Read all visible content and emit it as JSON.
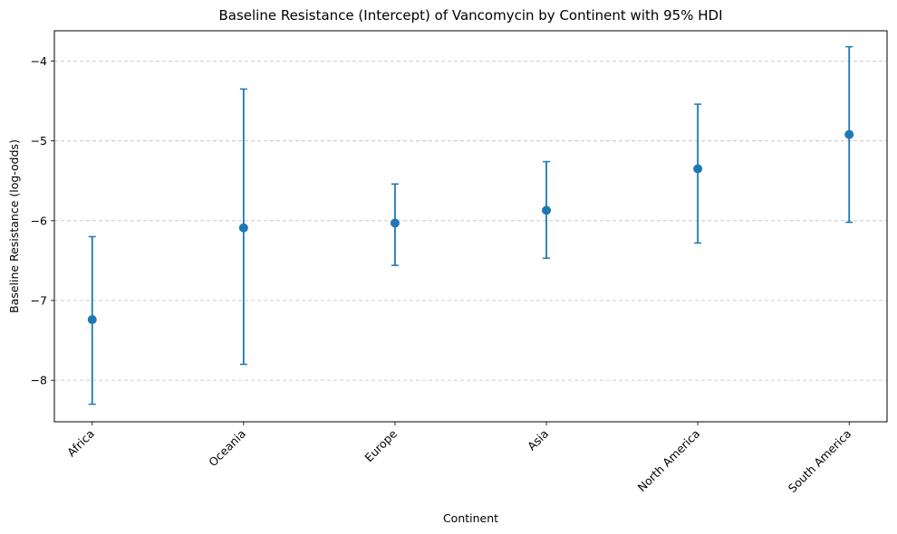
{
  "chart_data": {
    "type": "scatter",
    "title": "Baseline Resistance (Intercept) of Vancomycin by Continent with 95% HDI",
    "xlabel": "Continent",
    "ylabel": "Baseline Resistance (log-odds)",
    "categories": [
      "Africa",
      "Oceania",
      "Europe",
      "Asia",
      "North America",
      "South America"
    ],
    "series": [
      {
        "values": [
          -7.24,
          -6.09,
          -6.03,
          -5.87,
          -5.35,
          -4.92
        ],
        "lower": [
          -8.3,
          -7.8,
          -6.56,
          -6.47,
          -6.28,
          -6.02
        ],
        "upper": [
          -6.2,
          -4.35,
          -5.54,
          -5.26,
          -4.54,
          -3.82
        ]
      }
    ],
    "ylim": [
      -8.52,
      -3.62
    ],
    "yticks": [
      -8,
      -7,
      -6,
      -5,
      -4
    ],
    "ytick_labels": [
      "−8",
      "−7",
      "−6",
      "−5",
      "−4"
    ],
    "grid": "y-dashed",
    "color": "#1f77b4"
  }
}
